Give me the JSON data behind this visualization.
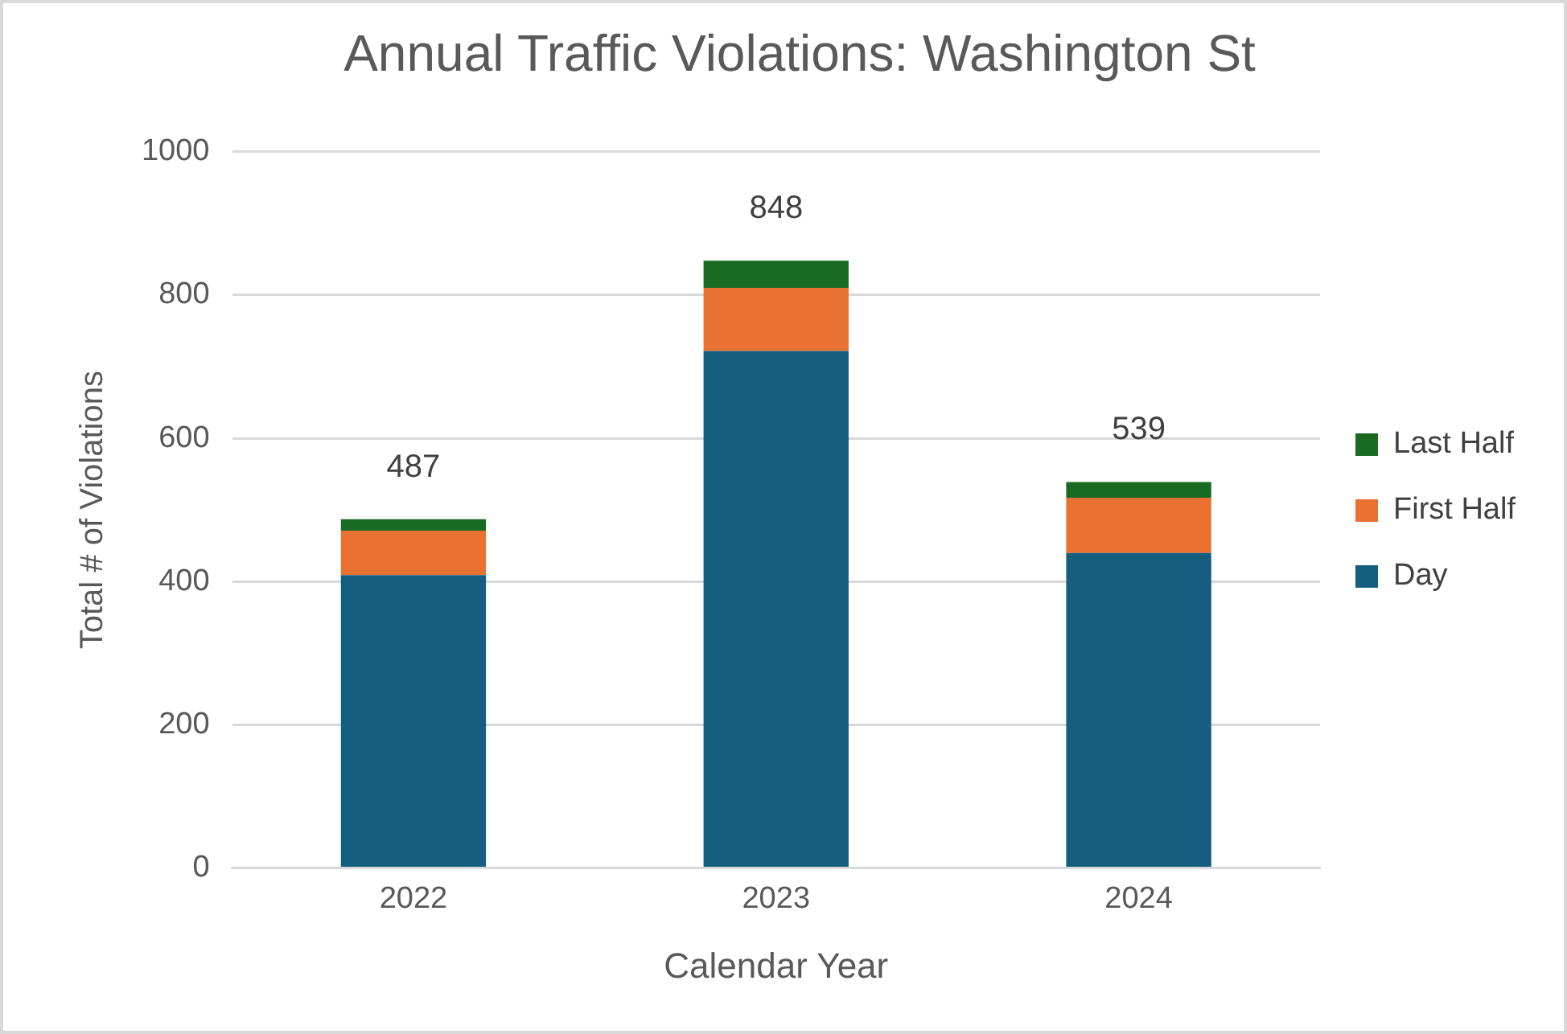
{
  "chart_data": {
    "type": "bar",
    "title": "Annual Traffic Violations: Washington St",
    "xlabel": "Calendar Year",
    "ylabel": "Total # of Violations",
    "categories": [
      "2022",
      "2023",
      "2024"
    ],
    "series": [
      {
        "name": "Day",
        "color": "#165e80",
        "values": [
          409,
          722,
          440
        ]
      },
      {
        "name": "First Half",
        "color": "#e97132",
        "values": [
          62,
          88,
          77
        ]
      },
      {
        "name": "Last Half",
        "color": "#196b24",
        "values": [
          16,
          38,
          22
        ]
      }
    ],
    "stacked": true,
    "totals": [
      "487",
      "848",
      "539"
    ],
    "ylim": [
      0,
      1000
    ],
    "yticks": [
      0,
      200,
      400,
      600,
      800,
      1000
    ],
    "grid": "y",
    "legend": "right"
  }
}
